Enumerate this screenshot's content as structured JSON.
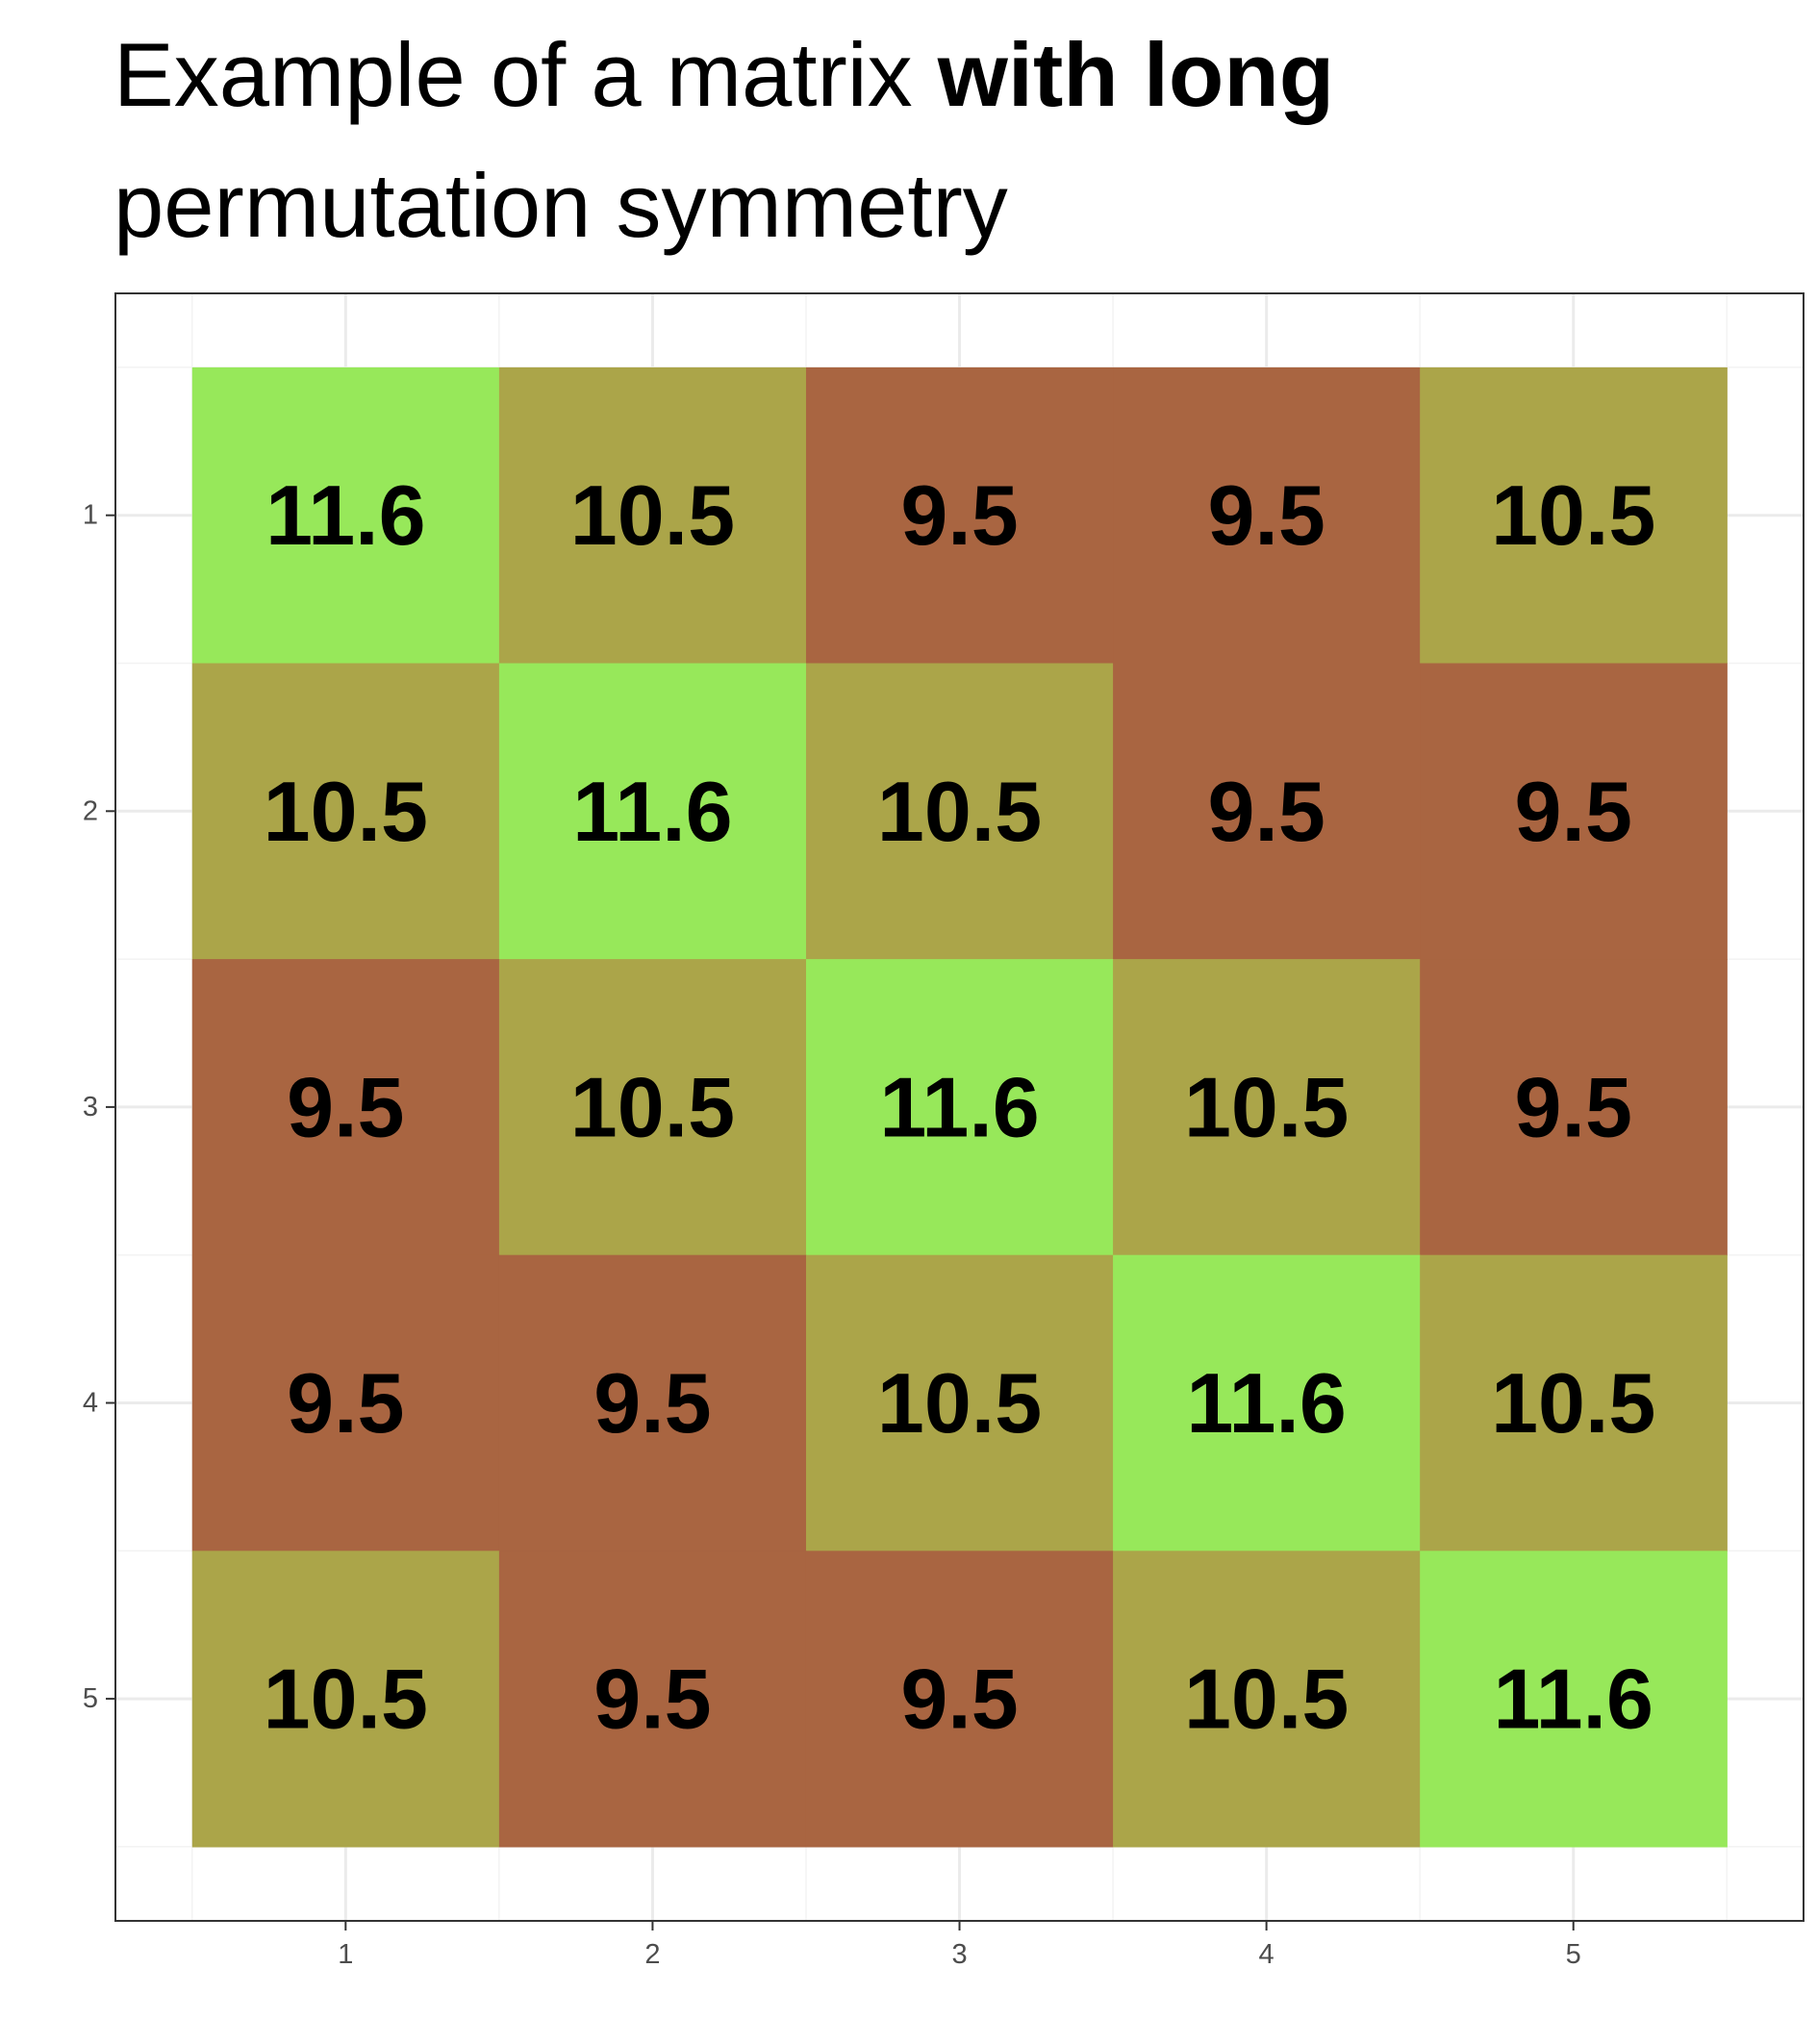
{
  "chart_data": {
    "type": "heatmap",
    "title": {
      "line1_normal": "Example of a matrix ",
      "line1_bold": "with long",
      "line2": "permutation symmetry"
    },
    "xlabel": "",
    "ylabel": "",
    "x_categories": [
      "1",
      "2",
      "3",
      "4",
      "5"
    ],
    "y_categories": [
      "1",
      "2",
      "3",
      "4",
      "5"
    ],
    "xlim": [
      0.5,
      5.5
    ],
    "ylim": [
      0.5,
      5.5
    ],
    "y_reversed": true,
    "grid": true,
    "legend": "none",
    "values": [
      [
        11.6,
        10.5,
        9.5,
        9.5,
        10.5
      ],
      [
        10.5,
        11.6,
        10.5,
        9.5,
        9.5
      ],
      [
        9.5,
        10.5,
        11.6,
        10.5,
        9.5
      ],
      [
        9.5,
        9.5,
        10.5,
        11.6,
        10.5
      ],
      [
        10.5,
        9.5,
        9.5,
        10.5,
        11.6
      ]
    ],
    "labels": [
      [
        "11.6",
        "10.5",
        "9.5",
        "9.5",
        "10.5"
      ],
      [
        "10.5",
        "11.6",
        "10.5",
        "9.5",
        "9.5"
      ],
      [
        "9.5",
        "10.5",
        "11.6",
        "10.5",
        "9.5"
      ],
      [
        "9.5",
        "9.5",
        "10.5",
        "11.6",
        "10.5"
      ],
      [
        "10.5",
        "9.5",
        "9.5",
        "10.5",
        "11.6"
      ]
    ],
    "colors": {
      "11.6": "#97e85a",
      "10.5": "#aba549",
      "9.5": "#a96541",
      "panel_border": "#333333",
      "grid_major": "#ebebeb",
      "grid_minor": "#f3f3f3",
      "tick": "#333333",
      "tick_text": "#4d4d4d"
    }
  }
}
